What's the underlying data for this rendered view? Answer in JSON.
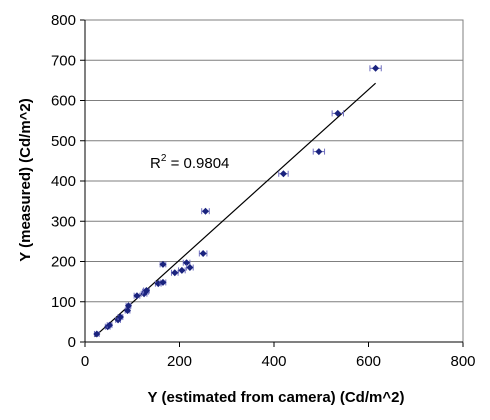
{
  "chart_data": {
    "type": "scatter",
    "xlabel": "Y (estimated from camera) (Cd/m^2)",
    "ylabel": "Y (measured) (Cd/m^2)",
    "xlim": [
      0,
      800
    ],
    "ylim": [
      0,
      800
    ],
    "xticks": [
      "0",
      "200",
      "400",
      "600",
      "800"
    ],
    "yticks": [
      "0",
      "100",
      "200",
      "300",
      "400",
      "500",
      "600",
      "700",
      "800"
    ],
    "grid": "horizontal",
    "legend": "none",
    "annotation": {
      "prefix": "R",
      "sup": "2",
      "suffix": " = 0.9804"
    },
    "marker_color": "#1a237e",
    "errorbar_color": "#6f6fbf",
    "trendline": {
      "x": [
        20,
        615
      ],
      "y": [
        13,
        643
      ]
    },
    "points": [
      {
        "x": 25,
        "y": 20,
        "xerr": 5
      },
      {
        "x": 48,
        "y": 38,
        "xerr": 5
      },
      {
        "x": 52,
        "y": 42,
        "xerr": 5
      },
      {
        "x": 70,
        "y": 55,
        "xerr": 5
      },
      {
        "x": 75,
        "y": 62,
        "xerr": 5
      },
      {
        "x": 90,
        "y": 78,
        "xerr": 5
      },
      {
        "x": 92,
        "y": 90,
        "xerr": 5
      },
      {
        "x": 110,
        "y": 115,
        "xerr": 6
      },
      {
        "x": 125,
        "y": 120,
        "xerr": 6
      },
      {
        "x": 128,
        "y": 125,
        "xerr": 6
      },
      {
        "x": 130,
        "y": 128,
        "xerr": 6
      },
      {
        "x": 155,
        "y": 145,
        "xerr": 6
      },
      {
        "x": 165,
        "y": 148,
        "xerr": 6
      },
      {
        "x": 165,
        "y": 193,
        "xerr": 6
      },
      {
        "x": 190,
        "y": 172,
        "xerr": 7
      },
      {
        "x": 205,
        "y": 178,
        "xerr": 7
      },
      {
        "x": 215,
        "y": 197,
        "xerr": 7
      },
      {
        "x": 222,
        "y": 185,
        "xerr": 7
      },
      {
        "x": 250,
        "y": 220,
        "xerr": 8
      },
      {
        "x": 255,
        "y": 325,
        "xerr": 8
      },
      {
        "x": 420,
        "y": 418,
        "xerr": 10
      },
      {
        "x": 495,
        "y": 473,
        "xerr": 12
      },
      {
        "x": 535,
        "y": 568,
        "xerr": 12
      },
      {
        "x": 615,
        "y": 680,
        "xerr": 12
      }
    ]
  }
}
